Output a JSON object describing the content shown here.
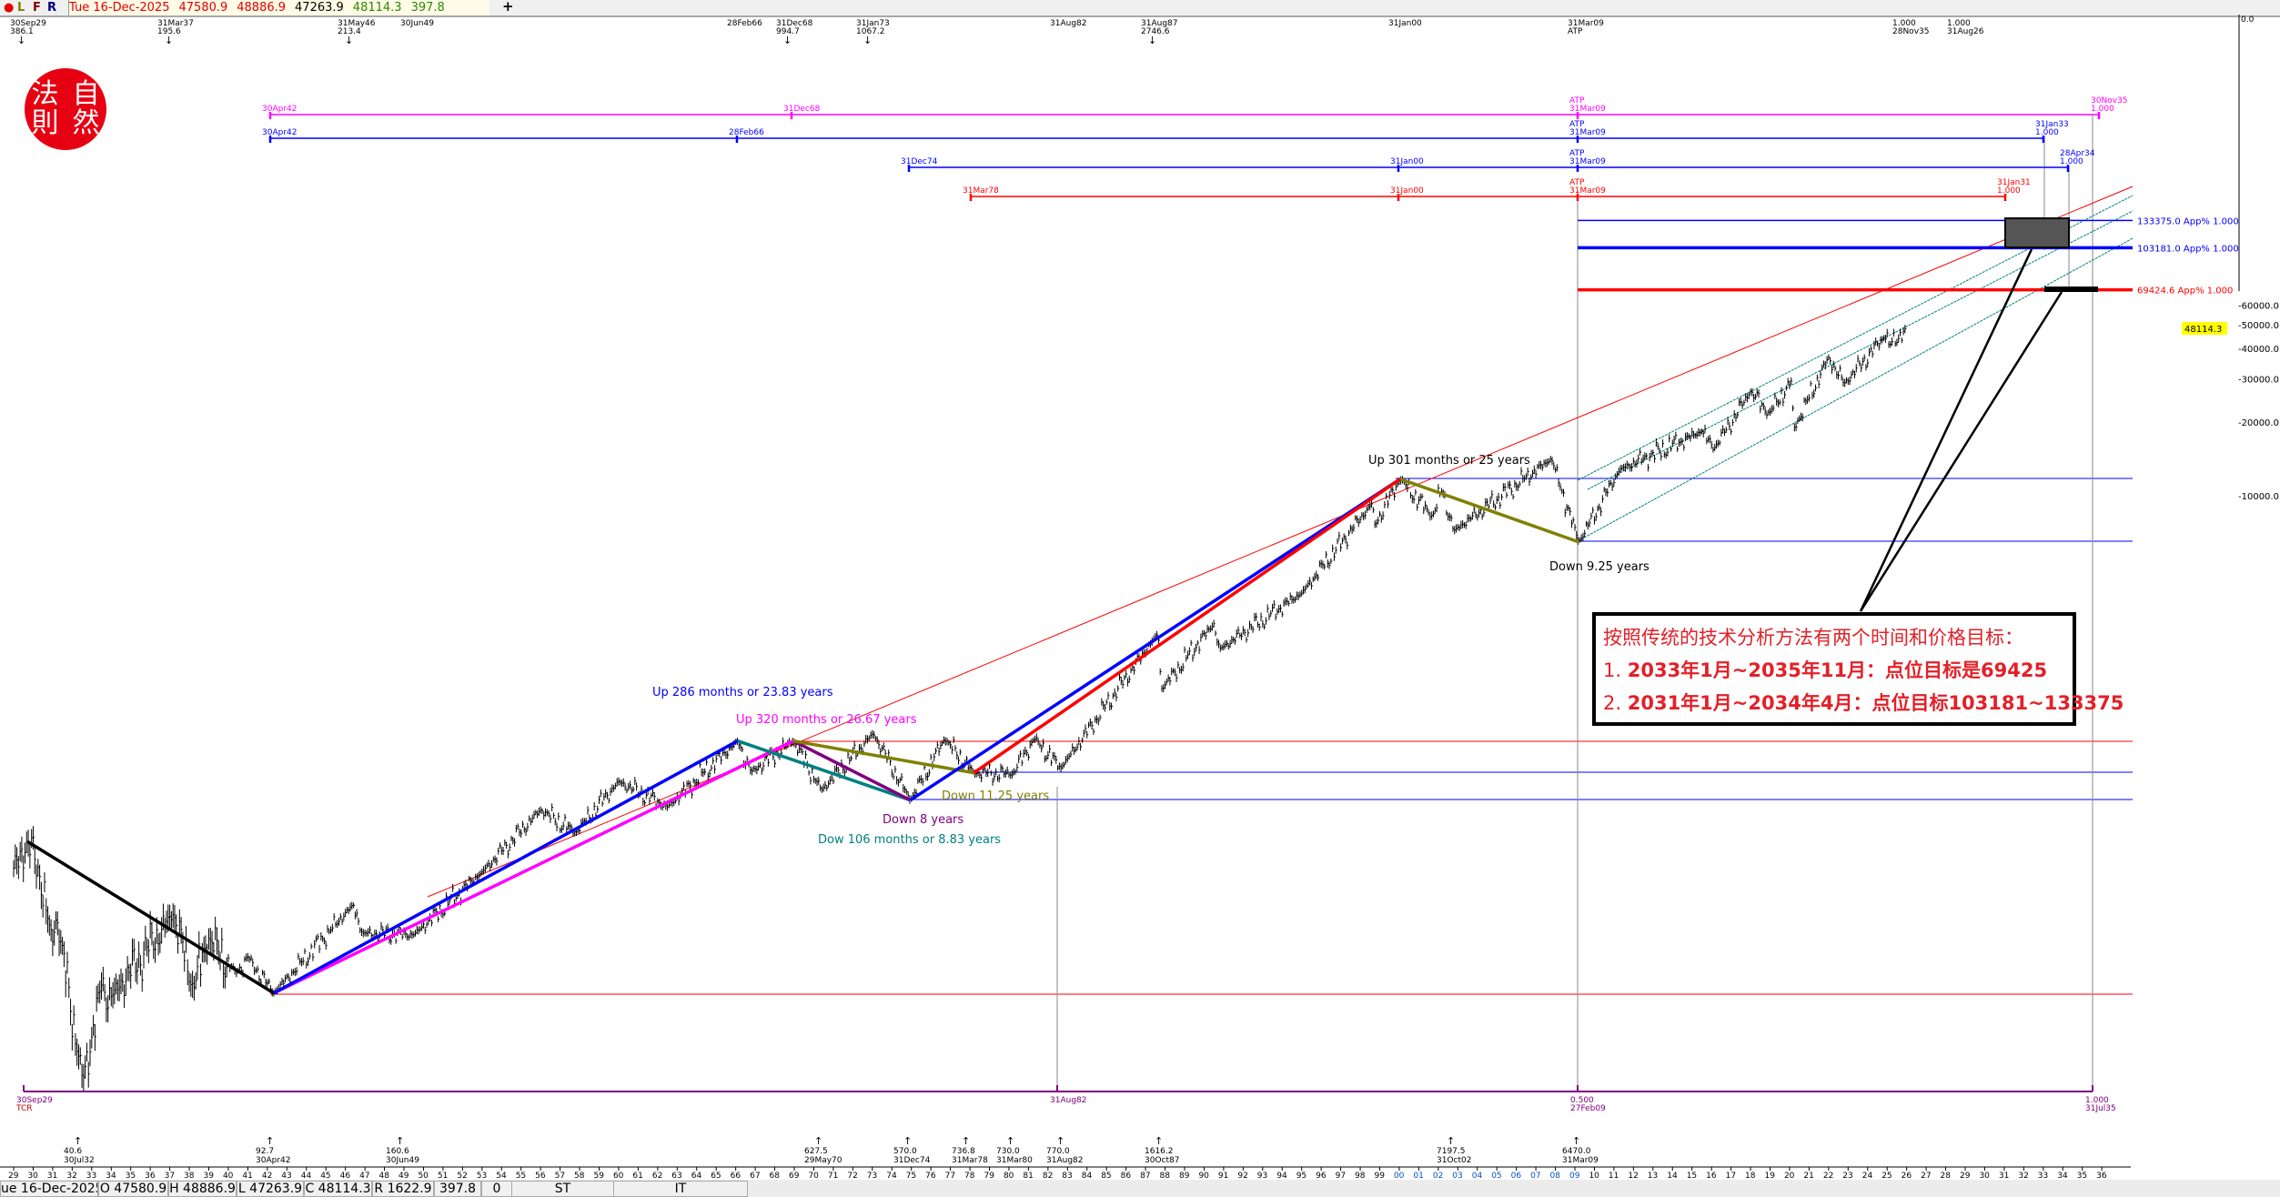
{
  "toolbar": {
    "indicator_dot": "●",
    "indicators": [
      "L",
      "F",
      "R"
    ],
    "date": "Tue 16-Dec-2025",
    "open": "47580.9",
    "high": "48886.9",
    "low": "47263.9",
    "close": "48114.3",
    "change": "397.8",
    "add_icon": "+",
    "colors": {
      "date": "#e60000",
      "open": "#e60000",
      "high": "#e60000",
      "low": "#000000",
      "close": "#2a8a00",
      "change": "#2a8a00"
    }
  },
  "logo": {
    "chars": [
      "法",
      "自",
      "則",
      "然"
    ]
  },
  "top_markers": [
    {
      "date": "30Sep29",
      "value": "386.1",
      "arrow": true
    },
    {
      "date": "31Mar37",
      "value": "195.6",
      "arrow": true
    },
    {
      "date": "31May46",
      "value": "213.4",
      "arrow": true
    },
    {
      "date": "30Jun49",
      "value": "",
      "arrow": false
    },
    {
      "date": "28Feb66",
      "value": "",
      "arrow": false
    },
    {
      "date": "31Dec68",
      "value": "994.7",
      "arrow": true
    },
    {
      "date": "31Jan73",
      "value": "1067.2",
      "arrow": true
    },
    {
      "date": "31Aug82",
      "value": "",
      "arrow": false
    },
    {
      "date": "31Aug87",
      "value": "2746.6",
      "arrow": true
    },
    {
      "date": "31Jan00",
      "value": "",
      "arrow": false
    },
    {
      "date": "31Mar09",
      "value": "ATP",
      "arrow": false
    },
    {
      "date": "1.000",
      "value": "28Nov35",
      "arrow": false
    },
    {
      "date": "1.000",
      "value": "31Aug26",
      "arrow": false
    }
  ],
  "time_spans": [
    {
      "color": "#ff00ff",
      "ticks": [
        [
          "30Apr42"
        ],
        [
          "31Dec68"
        ],
        [
          "ATP",
          "31Mar09"
        ],
        [
          "30Nov35",
          "1.000"
        ]
      ]
    },
    {
      "color": "#0000ff",
      "ticks": [
        [
          "30Apr42"
        ],
        [
          "28Feb66"
        ],
        [
          "ATP",
          "31Mar09"
        ],
        [
          "31Jan33",
          "1.000"
        ]
      ]
    },
    {
      "color": "#0000ff",
      "ticks": [
        [
          "31Dec74"
        ],
        [
          "31Jan00"
        ],
        [
          "ATP",
          "31Mar09"
        ],
        [
          "28Apr34",
          "1.000"
        ]
      ]
    },
    {
      "color": "#ff0000",
      "ticks": [
        [
          "31Mar78"
        ],
        [
          "31Jan00"
        ],
        [
          "ATP",
          "31Mar09"
        ],
        [
          "31Jan31",
          "1.000"
        ]
      ]
    }
  ],
  "targets": [
    {
      "label": "133375.0 App% 1.000",
      "color": "#0000ff"
    },
    {
      "label": "103181.0 App% 1.000",
      "color": "#0000ff"
    },
    {
      "label": "69424.6 App% 1.000",
      "color": "#ff0000"
    }
  ],
  "price_axis": {
    "ticks": [
      "-60000.0",
      "-50000.0",
      "-40000.0",
      "-30000.0",
      "-20000.0",
      "-10000.0"
    ],
    "top_tick": "0.0",
    "current_price": "48114.3",
    "current_price_bg": "#ffff00"
  },
  "annotations": [
    {
      "text": "Up 301 months or 25 years",
      "color": "#000000"
    },
    {
      "text": "Down 9.25 years",
      "color": "#000000"
    },
    {
      "text": "Up 286 months or 23.83 years",
      "color": "#0000ff"
    },
    {
      "text": "Up 320 months or 26.67 years",
      "color": "#ff00ff"
    },
    {
      "text": "Down 11.25 years",
      "color": "#808000"
    },
    {
      "text": "Down 8 years",
      "color": "#800080"
    },
    {
      "text": "Dow 106 months or 8.83 years",
      "color": "#008080"
    }
  ],
  "note_box": {
    "heading": "按照传统的技术分析方法有两个时间和价格目标：",
    "items": [
      {
        "num": "1.",
        "text": "2033年1月~2035年11月：点位目标是69425"
      },
      {
        "num": "2.",
        "text": "2031年1月~2034年4月：点位目标103181~133375"
      }
    ]
  },
  "cycle_line": {
    "color": "#800080",
    "ticks": [
      [
        "30Sep29",
        "TCR"
      ],
      [
        "31Aug82",
        ""
      ],
      [
        "0.500",
        "27Feb09"
      ],
      [
        "1.000",
        "31Jul35"
      ]
    ]
  },
  "bottom_markers": [
    {
      "value": "40.6",
      "date": "30Jul32"
    },
    {
      "value": "92.7",
      "date": "30Apr42"
    },
    {
      "value": "160.6",
      "date": "30Jun49"
    },
    {
      "value": "627.5",
      "date": "29May70"
    },
    {
      "value": "570.0",
      "date": "31Dec74"
    },
    {
      "value": "736.8",
      "date": "31Mar78"
    },
    {
      "value": "730.0",
      "date": "31Mar80"
    },
    {
      "value": "770.0",
      "date": "31Aug82"
    },
    {
      "value": "1616.2",
      "date": "30Oct87"
    },
    {
      "value": "7197.5",
      "date": "31Oct02"
    },
    {
      "value": "6470.0",
      "date": "31Mar09"
    }
  ],
  "x_axis": {
    "year_labels": [
      "29",
      "30",
      "31",
      "32",
      "33",
      "34",
      "35",
      "36",
      "37",
      "38",
      "39",
      "40",
      "41",
      "42",
      "43",
      "44",
      "45",
      "46",
      "47",
      "48",
      "49",
      "50",
      "51",
      "52",
      "53",
      "54",
      "55",
      "56",
      "57",
      "58",
      "59",
      "60",
      "61",
      "62",
      "63",
      "64",
      "65",
      "66",
      "67",
      "68",
      "69",
      "70",
      "71",
      "72",
      "73",
      "74",
      "75",
      "76",
      "77",
      "78",
      "79",
      "80",
      "81",
      "82",
      "83",
      "84",
      "85",
      "86",
      "87",
      "88",
      "89",
      "90",
      "91",
      "92",
      "93",
      "94",
      "95",
      "96",
      "97",
      "98",
      "99",
      "00",
      "01",
      "02",
      "03",
      "04",
      "05",
      "06",
      "07",
      "08",
      "09",
      "10",
      "11",
      "12",
      "13",
      "14",
      "15",
      "16",
      "17",
      "18",
      "19",
      "20",
      "21",
      "22",
      "23",
      "24",
      "25",
      "26",
      "27",
      "28",
      "29",
      "30",
      "31",
      "32",
      "33",
      "34",
      "35",
      "36"
    ]
  },
  "status_bar": {
    "cells": [
      "ue 16-Dec-2025",
      "O 47580.9",
      "H 48886.9",
      "L 47263.9",
      "C 48114.3",
      "R 1622.9",
      "397.8",
      "0",
      "ST",
      "IT"
    ]
  },
  "chart_data": {
    "type": "line",
    "style": "monthly OHLC bars",
    "y_scale": "log",
    "ylim": [
      35,
      140000
    ],
    "xlim": [
      1929,
      2036
    ],
    "grid": false,
    "pivots": {
      "x": [
        1929.0,
        1929.7,
        1930.3,
        1930.9,
        1931.2,
        1932.55,
        1933.5,
        1934.0,
        1937.2,
        1938.2,
        1939.0,
        1940.4,
        1941.0,
        1942.33,
        1946.4,
        1946.9,
        1949.5,
        1953.0,
        1956.0,
        1957.8,
        1960.0,
        1962.5,
        1966.1,
        1966.8,
        1968.95,
        1970.4,
        1973.05,
        1974.95,
        1976.7,
        1978.2,
        1980.2,
        1981.3,
        1982.65,
        1987.65,
        1987.8,
        1990.5,
        1990.8,
        1995.0,
        1998.6,
        1998.7,
        2000.05,
        2001.7,
        2002.2,
        2002.8,
        2007.8,
        2009.2,
        2011.3,
        2015.5,
        2016.1,
        2018.0,
        2018.95,
        2020.1,
        2020.2,
        2022.0,
        2022.8,
        2024.9,
        2025.1,
        2025.95
      ],
      "y": [
        300,
        386.1,
        290,
        160,
        190,
        40.6,
        100,
        90,
        195.6,
        98,
        155,
        112,
        130,
        92.7,
        213.4,
        163,
        160.6,
        290,
        520,
        420,
        680,
        535,
        995,
        744,
        994.7,
        627.5,
        1067.2,
        570,
        1015,
        736.8,
        730,
        1020,
        770,
        2746.6,
        1616.2,
        2999,
        2365,
        4000,
        9300,
        7500,
        11700,
        8235,
        10600,
        7197.5,
        14165,
        6470,
        12800,
        18300,
        15500,
        26600,
        21700,
        29500,
        18600,
        36800,
        28700,
        45000,
        41000,
        48114.3
      ]
    },
    "target_levels": [
      133375.0,
      103181.0,
      69424.6
    ]
  }
}
